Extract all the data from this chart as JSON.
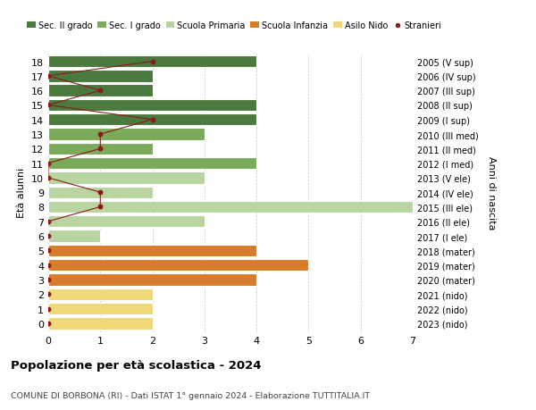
{
  "ages": [
    18,
    17,
    16,
    15,
    14,
    13,
    12,
    11,
    10,
    9,
    8,
    7,
    6,
    5,
    4,
    3,
    2,
    1,
    0
  ],
  "years_labels": [
    "2005 (V sup)",
    "2006 (IV sup)",
    "2007 (III sup)",
    "2008 (II sup)",
    "2009 (I sup)",
    "2010 (III med)",
    "2011 (II med)",
    "2012 (I med)",
    "2013 (V ele)",
    "2014 (IV ele)",
    "2015 (III ele)",
    "2016 (II ele)",
    "2017 (I ele)",
    "2018 (mater)",
    "2019 (mater)",
    "2020 (mater)",
    "2021 (nido)",
    "2022 (nido)",
    "2023 (nido)"
  ],
  "bar_values": [
    4,
    2,
    2,
    4,
    4,
    3,
    2,
    4,
    3,
    2,
    7,
    3,
    1,
    4,
    5,
    4,
    2,
    2,
    2
  ],
  "bar_colors": [
    "#4a7a3d",
    "#4a7a3d",
    "#4a7a3d",
    "#4a7a3d",
    "#4a7a3d",
    "#7aaa5a",
    "#7aaa5a",
    "#7aaa5a",
    "#b8d4a0",
    "#b8d4a0",
    "#b8d4a0",
    "#b8d4a0",
    "#b8d4a0",
    "#d97c2a",
    "#d97c2a",
    "#d97c2a",
    "#f0d878",
    "#f0d878",
    "#f0d878"
  ],
  "stranieri_values": [
    2,
    0,
    1,
    0,
    2,
    1,
    1,
    0,
    0,
    1,
    1,
    0,
    0,
    0,
    0,
    0,
    0,
    0,
    0
  ],
  "stranieri_line_indices": [
    0,
    1,
    2,
    3,
    4,
    5,
    6,
    7,
    8,
    9,
    10,
    11
  ],
  "legend_labels": [
    "Sec. II grado",
    "Sec. I grado",
    "Scuola Primaria",
    "Scuola Infanzia",
    "Asilo Nido",
    "Stranieri"
  ],
  "legend_colors": [
    "#4a7a3d",
    "#7aaa5a",
    "#b8d4a0",
    "#d97c2a",
    "#f0d878",
    "#8b1a1a"
  ],
  "title": "Popolazione per età scolastica - 2024",
  "subtitle": "COMUNE DI BORBONA (RI) - Dati ISTAT 1° gennaio 2024 - Elaborazione TUTTITALIA.IT",
  "ylabel": "Età alunni",
  "y2label": "Anni di nascita",
  "xlim": [
    0,
    7
  ],
  "xticks": [
    0,
    1,
    2,
    3,
    4,
    5,
    6,
    7
  ],
  "background_color": "#ffffff",
  "grid_color": "#cccccc",
  "bar_height": 0.82,
  "stranieri_color": "#8b1a1a",
  "stranieri_dot_size": 18,
  "stranieri_linewidth": 0.8
}
